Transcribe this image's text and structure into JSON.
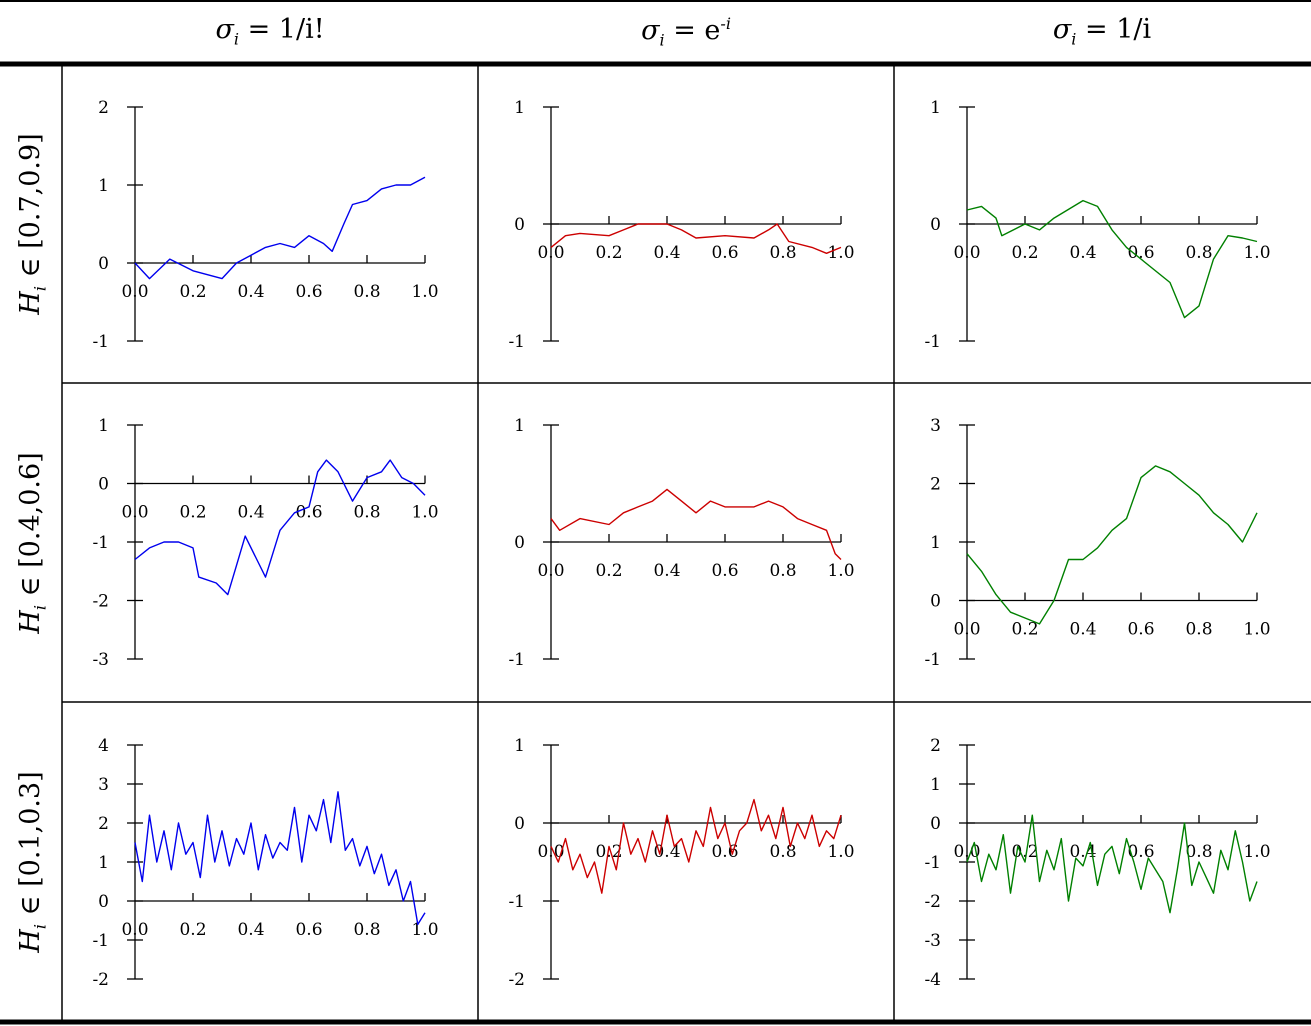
{
  "column_headers": [
    {
      "var": "σ",
      "sub": "i",
      "rhs": "= 1/i!",
      "sup": ""
    },
    {
      "var": "σ",
      "sub": "i",
      "rhs": "= e",
      "sup": "-i"
    },
    {
      "var": "σ",
      "sub": "i",
      "rhs": "= 1/i",
      "sup": ""
    }
  ],
  "row_labels": [
    {
      "var": "H",
      "sub": "i",
      "text": "∈ [0.7,0.9]"
    },
    {
      "var": "H",
      "sub": "i",
      "text": "∈ [0.4,0.6]"
    },
    {
      "var": "H",
      "sub": "i",
      "text": "∈ [0.1,0.3]"
    }
  ],
  "colors": {
    "col1": "#0000ee",
    "col2": "#cc0000",
    "col3": "#008000"
  },
  "chart_data": [
    {
      "type": "line",
      "row": 0,
      "col": 0,
      "color": "#0000ee",
      "xlim": [
        0,
        1
      ],
      "ylim": [
        -1,
        2
      ],
      "xticks": [
        "0.0",
        "0.2",
        "0.4",
        "0.6",
        "0.8",
        "1.0"
      ],
      "yticks": [
        2,
        1,
        0,
        -1
      ],
      "x": [
        0,
        0.05,
        0.12,
        0.2,
        0.3,
        0.35,
        0.4,
        0.45,
        0.5,
        0.55,
        0.6,
        0.65,
        0.68,
        0.72,
        0.75,
        0.8,
        0.85,
        0.9,
        0.95,
        1.0
      ],
      "y": [
        0,
        -0.2,
        0.05,
        -0.1,
        -0.2,
        0.0,
        0.1,
        0.2,
        0.25,
        0.2,
        0.35,
        0.25,
        0.15,
        0.5,
        0.75,
        0.8,
        0.95,
        1.0,
        1.0,
        1.1
      ]
    },
    {
      "type": "line",
      "row": 0,
      "col": 1,
      "color": "#cc0000",
      "xlim": [
        0,
        1
      ],
      "ylim": [
        -1,
        1
      ],
      "xticks": [
        "0.0",
        "0.2",
        "0.4",
        "0.6",
        "0.8",
        "1.0"
      ],
      "yticks": [
        1,
        0,
        -1
      ],
      "x": [
        0,
        0.05,
        0.1,
        0.2,
        0.25,
        0.3,
        0.4,
        0.45,
        0.5,
        0.6,
        0.7,
        0.75,
        0.78,
        0.82,
        0.9,
        0.95,
        1.0
      ],
      "y": [
        -0.2,
        -0.1,
        -0.08,
        -0.1,
        -0.05,
        0,
        0,
        -0.05,
        -0.12,
        -0.1,
        -0.12,
        -0.05,
        0,
        -0.15,
        -0.2,
        -0.25,
        -0.2
      ]
    },
    {
      "type": "line",
      "row": 0,
      "col": 2,
      "color": "#008000",
      "xlim": [
        0,
        1
      ],
      "ylim": [
        -1,
        1
      ],
      "xticks": [
        "0.0",
        "0.2",
        "0.4",
        "0.6",
        "0.8",
        "1.0"
      ],
      "yticks": [
        1,
        0,
        -1
      ],
      "x": [
        0,
        0.05,
        0.1,
        0.12,
        0.2,
        0.25,
        0.3,
        0.4,
        0.45,
        0.5,
        0.55,
        0.6,
        0.7,
        0.75,
        0.8,
        0.85,
        0.9,
        0.95,
        1.0
      ],
      "y": [
        0.12,
        0.15,
        0.05,
        -0.1,
        0,
        -0.05,
        0.05,
        0.2,
        0.15,
        -0.05,
        -0.2,
        -0.3,
        -0.5,
        -0.8,
        -0.7,
        -0.3,
        -0.1,
        -0.12,
        -0.15
      ]
    },
    {
      "type": "line",
      "row": 1,
      "col": 0,
      "color": "#0000ee",
      "xlim": [
        0,
        1
      ],
      "ylim": [
        -3,
        1
      ],
      "xticks": [
        "0.0",
        "0.2",
        "0.4",
        "0.6",
        "0.8",
        "1.0"
      ],
      "yticks": [
        1,
        0,
        -1,
        -2,
        -3
      ],
      "x": [
        0,
        0.05,
        0.1,
        0.15,
        0.2,
        0.22,
        0.28,
        0.32,
        0.35,
        0.38,
        0.42,
        0.45,
        0.5,
        0.55,
        0.6,
        0.63,
        0.66,
        0.7,
        0.75,
        0.8,
        0.85,
        0.88,
        0.92,
        0.96,
        1.0
      ],
      "y": [
        -1.3,
        -1.1,
        -1.0,
        -1.0,
        -1.1,
        -1.6,
        -1.7,
        -1.9,
        -1.4,
        -0.9,
        -1.3,
        -1.6,
        -0.8,
        -0.5,
        -0.4,
        0.2,
        0.4,
        0.2,
        -0.3,
        0.1,
        0.2,
        0.4,
        0.1,
        0,
        -0.2
      ]
    },
    {
      "type": "line",
      "row": 1,
      "col": 1,
      "color": "#cc0000",
      "xlim": [
        0,
        1
      ],
      "ylim": [
        -1,
        1
      ],
      "xticks": [
        "0.0",
        "0.2",
        "0.4",
        "0.6",
        "0.8",
        "1.0"
      ],
      "yticks": [
        1,
        0,
        -1
      ],
      "x": [
        0,
        0.03,
        0.1,
        0.2,
        0.25,
        0.3,
        0.35,
        0.4,
        0.45,
        0.5,
        0.55,
        0.6,
        0.7,
        0.75,
        0.8,
        0.85,
        0.9,
        0.95,
        0.98,
        1.0
      ],
      "y": [
        0.2,
        0.1,
        0.2,
        0.15,
        0.25,
        0.3,
        0.35,
        0.45,
        0.35,
        0.25,
        0.35,
        0.3,
        0.3,
        0.35,
        0.3,
        0.2,
        0.15,
        0.1,
        -0.1,
        -0.15
      ]
    },
    {
      "type": "line",
      "row": 1,
      "col": 2,
      "color": "#008000",
      "xlim": [
        0,
        1
      ],
      "ylim": [
        -1,
        3
      ],
      "xticks": [
        "0.0",
        "0.2",
        "0.4",
        "0.6",
        "0.8",
        "1.0"
      ],
      "yticks": [
        3,
        2,
        1,
        0,
        -1
      ],
      "x": [
        0,
        0.05,
        0.1,
        0.15,
        0.2,
        0.25,
        0.3,
        0.35,
        0.4,
        0.45,
        0.5,
        0.55,
        0.6,
        0.65,
        0.7,
        0.75,
        0.8,
        0.85,
        0.9,
        0.95,
        1.0
      ],
      "y": [
        0.8,
        0.5,
        0.1,
        -0.2,
        -0.3,
        -0.4,
        0,
        0.7,
        0.7,
        0.9,
        1.2,
        1.4,
        2.1,
        2.3,
        2.2,
        2.0,
        1.8,
        1.5,
        1.3,
        1.0,
        1.5
      ]
    },
    {
      "type": "line",
      "row": 2,
      "col": 0,
      "color": "#0000ee",
      "xlim": [
        0,
        1
      ],
      "ylim": [
        -2,
        4
      ],
      "xticks": [
        "0.0",
        "0.2",
        "0.4",
        "0.6",
        "0.8",
        "1.0"
      ],
      "yticks": [
        4,
        3,
        2,
        1,
        0,
        -1,
        -2
      ],
      "x_step": 0.025,
      "y": [
        1.5,
        0.5,
        2.2,
        1.0,
        1.8,
        0.8,
        2.0,
        1.2,
        1.5,
        0.6,
        2.2,
        1.0,
        1.8,
        0.9,
        1.6,
        1.2,
        2.0,
        0.8,
        1.7,
        1.1,
        1.5,
        1.3,
        2.4,
        1.0,
        2.2,
        1.8,
        2.6,
        1.5,
        2.8,
        1.3,
        1.6,
        0.9,
        1.4,
        0.7,
        1.2,
        0.4,
        0.8,
        0.0,
        0.5,
        -0.6,
        -0.3
      ]
    },
    {
      "type": "line",
      "row": 2,
      "col": 1,
      "color": "#cc0000",
      "xlim": [
        0,
        1
      ],
      "ylim": [
        -2,
        1
      ],
      "xticks": [
        "0.0",
        "0.2",
        "0.4",
        "0.6",
        "0.8",
        "1.0"
      ],
      "yticks": [
        1,
        0,
        -1,
        -2
      ],
      "x_step": 0.025,
      "y": [
        -0.3,
        -0.5,
        -0.2,
        -0.6,
        -0.4,
        -0.7,
        -0.5,
        -0.9,
        -0.3,
        -0.6,
        0.0,
        -0.4,
        -0.2,
        -0.5,
        -0.1,
        -0.4,
        0.1,
        -0.3,
        -0.2,
        -0.5,
        -0.1,
        -0.3,
        0.2,
        -0.2,
        0.0,
        -0.4,
        -0.1,
        0.0,
        0.3,
        -0.1,
        0.1,
        -0.2,
        0.2,
        -0.3,
        0.0,
        -0.2,
        0.1,
        -0.3,
        -0.1,
        -0.2,
        0.1
      ]
    },
    {
      "type": "line",
      "row": 2,
      "col": 2,
      "color": "#008000",
      "xlim": [
        0,
        1
      ],
      "ylim": [
        -4,
        2
      ],
      "xticks": [
        "0.0",
        "0.2",
        "0.4",
        "0.6",
        "0.8",
        "1.0"
      ],
      "yticks": [
        2,
        1,
        0,
        -1,
        -2,
        -3,
        -4
      ],
      "x_step": 0.025,
      "y": [
        -1.0,
        -0.5,
        -1.5,
        -0.8,
        -1.2,
        -0.3,
        -1.8,
        -0.6,
        -1.0,
        0.2,
        -1.5,
        -0.7,
        -1.2,
        -0.4,
        -2.0,
        -0.9,
        -1.1,
        -0.5,
        -1.6,
        -0.8,
        -0.6,
        -1.3,
        -0.4,
        -1.0,
        -1.7,
        -0.9,
        -1.2,
        -1.5,
        -2.3,
        -1.2,
        0.0,
        -1.6,
        -1.0,
        -1.4,
        -1.8,
        -0.7,
        -1.2,
        -0.2,
        -1.0,
        -2.0,
        -1.5
      ]
    }
  ]
}
